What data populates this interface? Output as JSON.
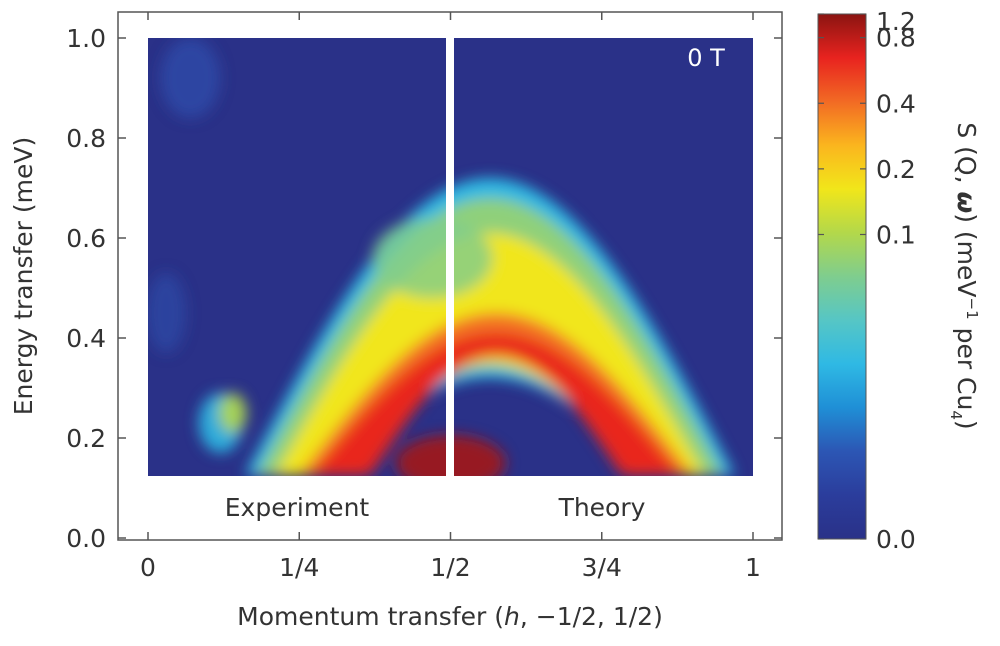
{
  "chart_data": {
    "type": "heatmap",
    "xlabel_parts": [
      "Momentum transfer (",
      "h",
      ", −1/2, 1/2)"
    ],
    "ylabel": "Energy transfer (meV)",
    "xlim": [
      0,
      1
    ],
    "ylim": [
      0,
      1.0
    ],
    "x_ticks": [
      0,
      0.25,
      0.5,
      0.75,
      1
    ],
    "x_tick_labels": [
      "0",
      "1/4",
      "1/2",
      "3/4",
      "1"
    ],
    "y_ticks": [
      0,
      0.2,
      0.4,
      0.6,
      0.8,
      1.0
    ],
    "y_tick_labels": [
      "0.0",
      "0.2",
      "0.4",
      "0.6",
      "0.8",
      "1.0"
    ],
    "panels": [
      {
        "label": "Experiment",
        "x_range": [
          0,
          0.5
        ]
      },
      {
        "label": "Theory",
        "x_range": [
          0.5,
          1
        ]
      }
    ],
    "field_label": "0 T",
    "intensity_y_range": [
      0.125,
      1.0
    ],
    "spectrum": {
      "lower_boundary_peak_energy": 0.34,
      "upper_boundary_peak_energy": 0.7,
      "bright_band_energy_at_quarter": 0.43
    },
    "colorbar": {
      "label_parts": [
        "S (Q, ",
        "ω",
        ") (meV",
        "−1",
        " per Cu",
        "4",
        ")"
      ],
      "ticks": [
        0.0,
        0.1,
        0.2,
        0.4,
        0.8,
        1.2
      ],
      "tick_labels": [
        "0.0",
        "0.1",
        "0.2",
        "0.4",
        "0.8",
        "1.2"
      ],
      "tick_fractions": [
        0.0,
        0.58,
        0.705,
        0.83,
        0.955,
        1.0
      ],
      "colors": [
        "#2a3188",
        "#2b3d9c",
        "#2c56b4",
        "#1f8fd6",
        "#2fb9e4",
        "#56c6c5",
        "#7fcd8e",
        "#b3d84a",
        "#f1e61a",
        "#fbb51e",
        "#f26a24",
        "#e8231f",
        "#8b1411"
      ]
    }
  }
}
